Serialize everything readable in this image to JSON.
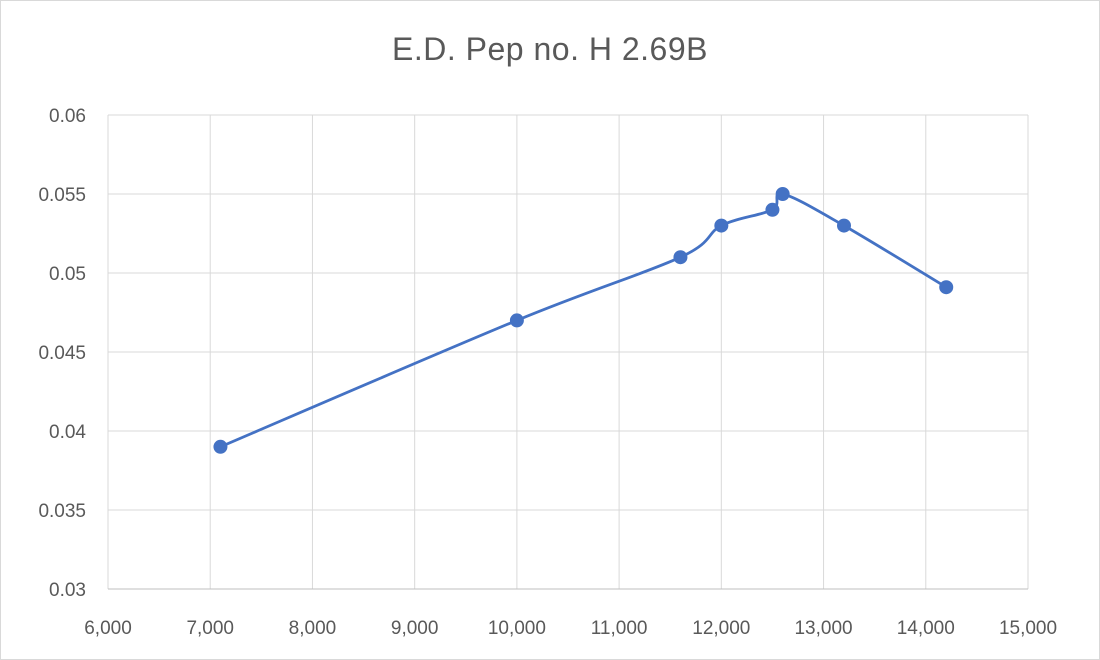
{
  "chart_data": {
    "type": "scatter",
    "title": "E.D. Pep no. H 2.69B",
    "xlabel": "",
    "ylabel": "",
    "xlim": [
      6000,
      15000
    ],
    "ylim": [
      0.03,
      0.06
    ],
    "x_ticks": [
      6000,
      7000,
      8000,
      9000,
      10000,
      11000,
      12000,
      13000,
      14000,
      15000
    ],
    "x_tick_labels": [
      "6,000",
      "7,000",
      "8,000",
      "9,000",
      "10,000",
      "11,000",
      "12,000",
      "13,000",
      "14,000",
      "15,000"
    ],
    "y_ticks": [
      0.03,
      0.035,
      0.04,
      0.045,
      0.05,
      0.055,
      0.06
    ],
    "y_tick_labels": [
      "0.03",
      "0.035",
      "0.04",
      "0.045",
      "0.05",
      "0.055",
      "0.06"
    ],
    "grid": true,
    "legend": "none",
    "line": "smoothed",
    "color": "#4472c4",
    "series": [
      {
        "x": [
          7100,
          10000,
          11600,
          12000,
          12500,
          12600,
          13200,
          14200
        ],
        "y": [
          0.039,
          0.047,
          0.051,
          0.053,
          0.054,
          0.055,
          0.053,
          0.0491
        ]
      }
    ]
  }
}
